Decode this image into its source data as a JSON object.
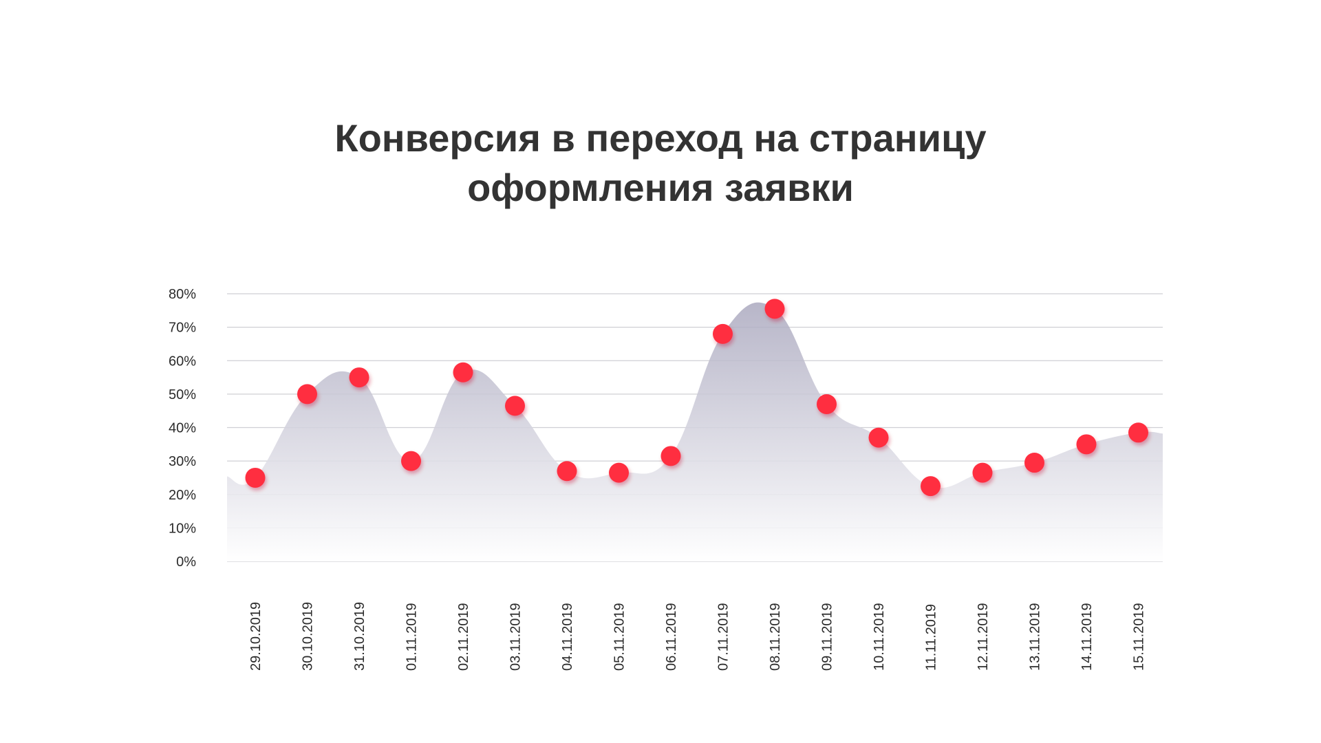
{
  "title_line1": "Конверсия в переход на страницу",
  "title_line2": "оформления заявки",
  "chart_data": {
    "type": "area",
    "title": "Конверсия в переход на страницу оформления заявки",
    "xlabel": "",
    "ylabel": "",
    "categories": [
      "29.10.2019",
      "30.10.2019",
      "31.10.2019",
      "01.11.2019",
      "02.11.2019",
      "03.11.2019",
      "04.11.2019",
      "05.11.2019",
      "06.11.2019",
      "07.11.2019",
      "08.11.2019",
      "09.11.2019",
      "10.11.2019",
      "11.11.2019",
      "12.11.2019",
      "13.11.2019",
      "14.11.2019",
      "15.11.2019"
    ],
    "series": [
      {
        "values": [
          25,
          50,
          55,
          30,
          56.5,
          46.5,
          27,
          26.5,
          31.5,
          68,
          75.5,
          47,
          37,
          22.5,
          26.5,
          29.5,
          35,
          38.5
        ]
      }
    ],
    "ylim": [
      0,
      80
    ],
    "yticks": [
      "0%",
      "10%",
      "20%",
      "30%",
      "40%",
      "50%",
      "60%",
      "70%",
      "80%"
    ],
    "grid": true,
    "legend": "none",
    "colors": {
      "marker": "#ff2d41",
      "area_top": "#aba9bf",
      "area_bottom": "#ffffff",
      "grid": "#cfcfd4",
      "text": "#2b2b2b"
    }
  }
}
